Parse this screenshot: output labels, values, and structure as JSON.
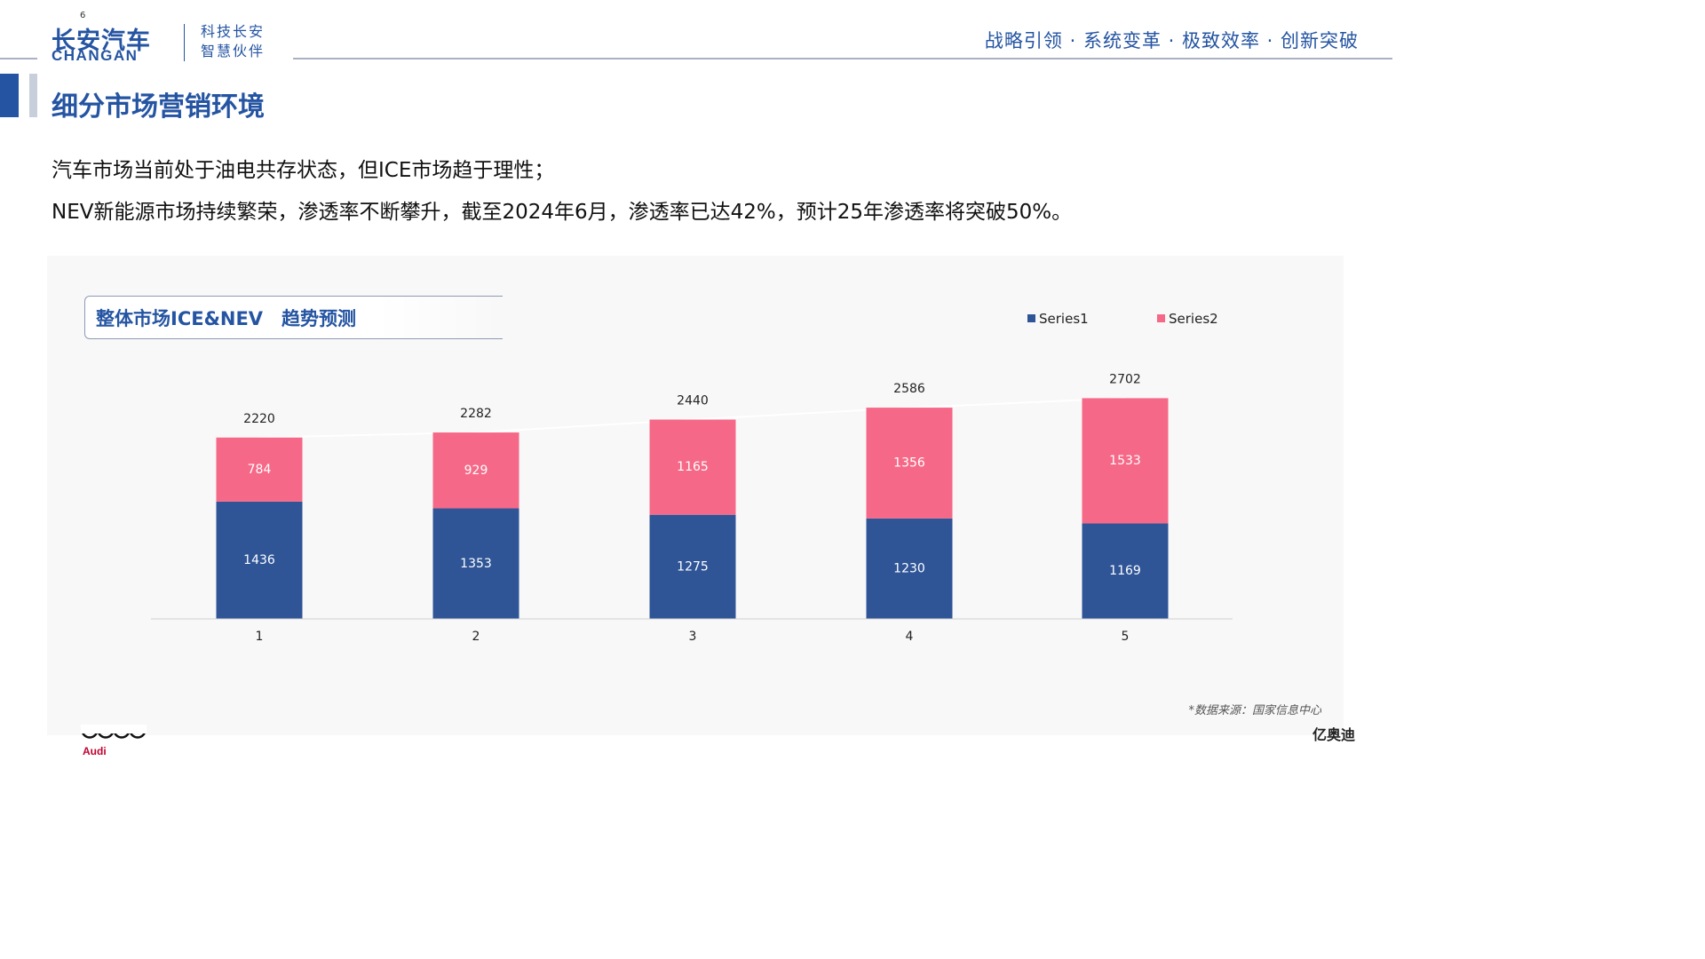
{
  "header": {
    "page_number": "6",
    "logo_cn": "长安汽车",
    "logo_en": "CHANGAN",
    "slogan_line1": "科技长安",
    "slogan_line2": "智慧伙伴",
    "tagline": "战略引领 · 系统变革 · 极致效率 · 创新突破"
  },
  "page": {
    "title": "细分市场营销环境",
    "description_line1": "汽车市场当前处于油电共存状态，但ICE市场趋于理性；",
    "description_line2": "NEV新能源市场持续繁荣，渗透率不断攀升，截至2024年6月，渗透率已达42%，预计25年渗透率将突破50%。"
  },
  "chart_panel": {
    "title": "整体市场ICE&NEV　趋势预测",
    "source": "*数据来源：国家信息中心"
  },
  "chart_data": {
    "type": "bar",
    "stacked": true,
    "title": "整体市场ICE&NEV　趋势预测",
    "categories": [
      "1",
      "2",
      "3",
      "4",
      "5"
    ],
    "series": [
      {
        "name": "Series1",
        "color": "#2f5597",
        "values": [
          1436,
          1353,
          1275,
          1230,
          1169
        ]
      },
      {
        "name": "Series2",
        "color": "#f66887",
        "values": [
          784,
          929,
          1165,
          1356,
          1533
        ]
      }
    ],
    "totals": [
      2220,
      2282,
      2440,
      2586,
      2702
    ],
    "legend_position": "top-right",
    "grid": false
  },
  "footer": {
    "brand": "Audi",
    "right_text": "亿奥迪"
  }
}
